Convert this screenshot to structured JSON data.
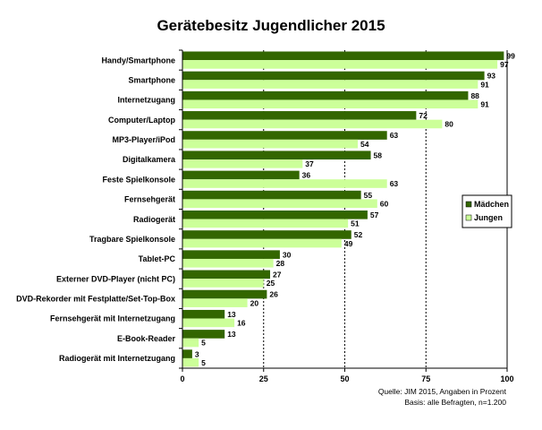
{
  "chart_data": {
    "type": "bar",
    "orientation": "horizontal",
    "title": "Gerätebesitz Jugendlicher 2015",
    "categories": [
      "Handy/Smartphone",
      "Smartphone",
      "Internetzugang",
      "Computer/Laptop",
      "MP3-Player/iPod",
      "Digitalkamera",
      "Feste Spielkonsole",
      "Fernsehgerät",
      "Radiogerät",
      "Tragbare Spielkonsole",
      "Tablet-PC",
      "Externer DVD-Player (nicht PC)",
      "DVD-Rekorder mit Festplatte/Set-Top-Box",
      "Fernsehgerät mit Internetzugang",
      "E-Book-Reader",
      "Radiogerät mit Internetzugang"
    ],
    "series": [
      {
        "name": "Mädchen",
        "color": "#336600",
        "values": [
          99,
          93,
          88,
          72,
          63,
          58,
          36,
          55,
          57,
          52,
          30,
          27,
          26,
          13,
          13,
          3
        ]
      },
      {
        "name": "Jungen",
        "color": "#ccff99",
        "values": [
          97,
          91,
          91,
          80,
          54,
          37,
          63,
          60,
          51,
          49,
          28,
          25,
          20,
          16,
          5,
          5
        ]
      }
    ],
    "xlim": [
      0,
      100
    ],
    "xticks": [
      "0",
      "25",
      "50",
      "75",
      "100"
    ],
    "grid": "dashed vertical lines at 25, 50, 75",
    "legend_position": "right",
    "source_lines": [
      "Quelle: JIM 2015, Angaben in Prozent",
      "Basis: alle Befragten, n=1.200"
    ]
  }
}
